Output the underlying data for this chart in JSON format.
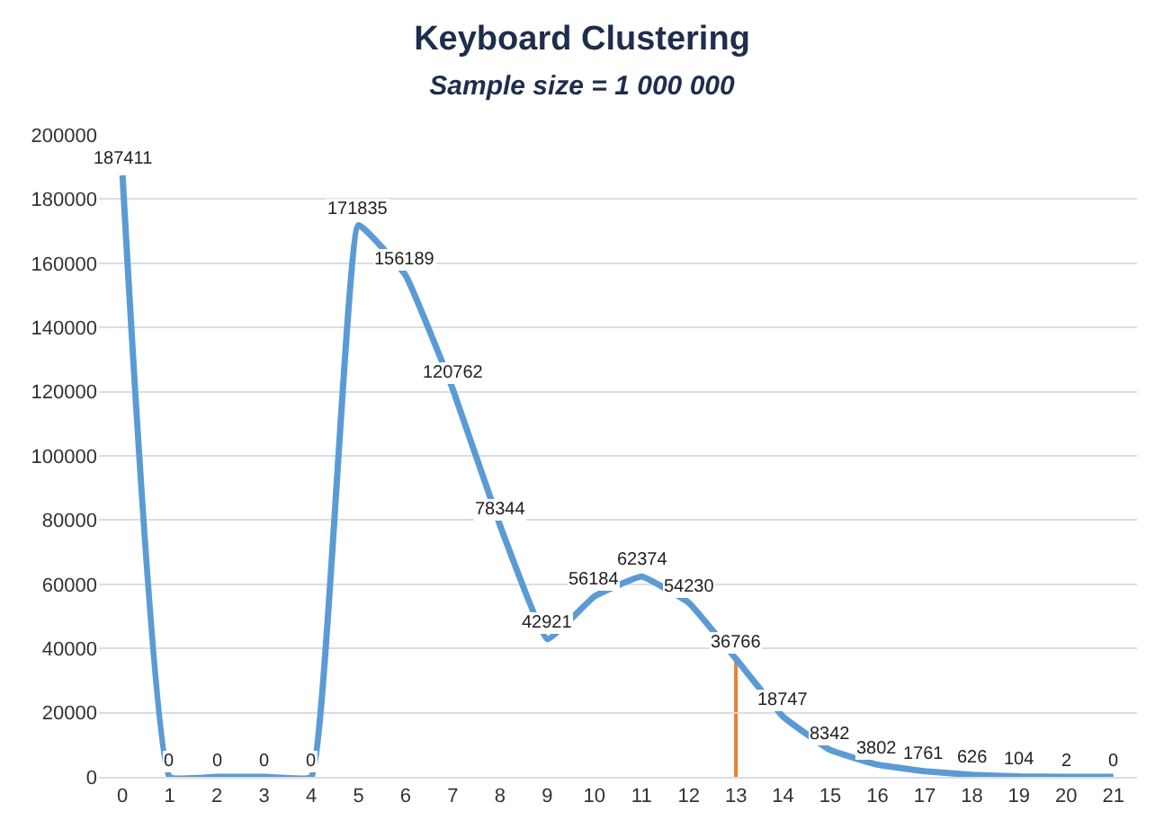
{
  "chart_data": {
    "type": "line",
    "title": "Keyboard Clustering",
    "subtitle": "Sample size = 1 000 000",
    "x": [
      0,
      1,
      2,
      3,
      4,
      5,
      6,
      7,
      8,
      9,
      10,
      11,
      12,
      13,
      14,
      15,
      16,
      17,
      18,
      19,
      20,
      21
    ],
    "series": [
      {
        "color": "#5b9bd5",
        "values": [
          187411,
          0,
          0,
          0,
          0,
          171835,
          156189,
          120762,
          78344,
          42921,
          56184,
          62374,
          54230,
          36766,
          18747,
          8342,
          3802,
          1761,
          626,
          104,
          2,
          0
        ]
      }
    ],
    "xlim": [
      -0.5,
      21.5
    ],
    "xticks": [
      0,
      1,
      2,
      3,
      4,
      5,
      6,
      7,
      8,
      9,
      10,
      11,
      12,
      13,
      14,
      15,
      16,
      17,
      18,
      19,
      20,
      21
    ],
    "ylim": [
      0,
      200000
    ],
    "yticks": [
      0,
      20000,
      40000,
      60000,
      80000,
      100000,
      120000,
      140000,
      160000,
      180000,
      200000
    ],
    "ref_lines": [
      {
        "axis": "x",
        "value": 13,
        "color": "#ed7d31"
      }
    ],
    "data_labels": true,
    "grid": "y",
    "marker": "none",
    "line_style": "solid"
  }
}
